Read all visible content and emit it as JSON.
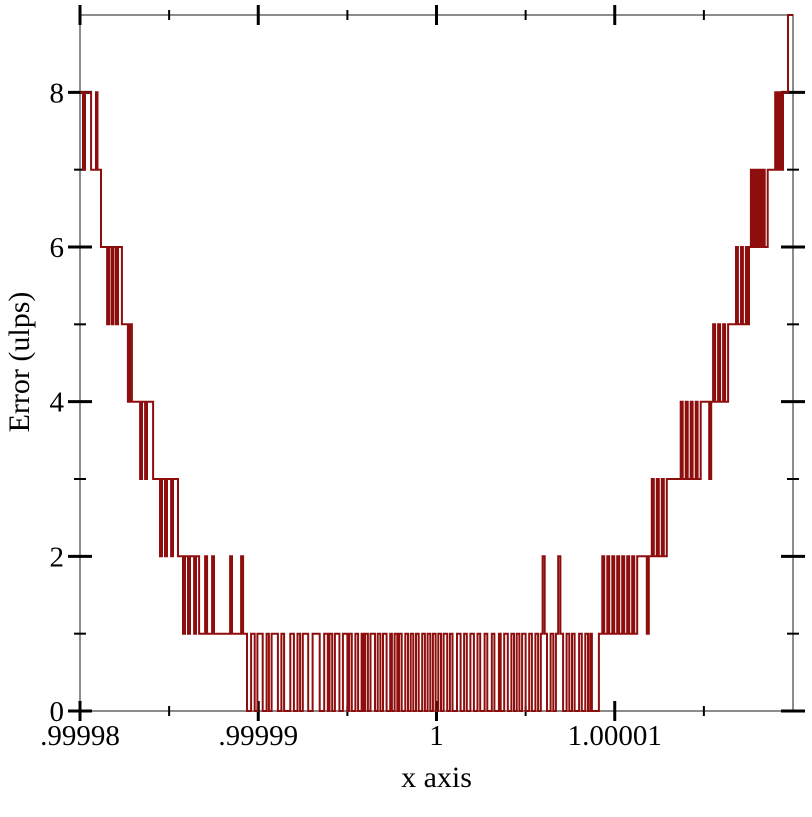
{
  "chart_data": {
    "type": "line",
    "line_style": "step",
    "title": "",
    "xlabel": "x axis",
    "ylabel": "Error (ulps)",
    "x_encoding": "x = 1 + u * 1e-5 (u stored in steps and ticks)",
    "x_range": [
      -2,
      2
    ],
    "y_range": [
      0,
      9
    ],
    "grid": false,
    "legend": "none",
    "x_ticks": [
      {
        "u": -2.0,
        "label": ".99998",
        "major": true
      },
      {
        "u": -1.5,
        "label": "",
        "major": false
      },
      {
        "u": -1.0,
        "label": ".99999",
        "major": true
      },
      {
        "u": -0.5,
        "label": "",
        "major": false
      },
      {
        "u": 0.0,
        "label": "1",
        "major": true
      },
      {
        "u": 0.5,
        "label": "",
        "major": false
      },
      {
        "u": 1.0,
        "label": "1.00001",
        "major": true
      },
      {
        "u": 1.5,
        "label": "",
        "major": false
      }
    ],
    "y_ticks": [
      {
        "v": 0,
        "label": "0",
        "major": true
      },
      {
        "v": 1,
        "label": "",
        "major": false
      },
      {
        "v": 2,
        "label": "2",
        "major": true
      },
      {
        "v": 3,
        "label": "",
        "major": false
      },
      {
        "v": 4,
        "label": "4",
        "major": true
      },
      {
        "v": 5,
        "label": "",
        "major": false
      },
      {
        "v": 6,
        "label": "6",
        "major": true
      },
      {
        "v": 7,
        "label": "",
        "major": false
      },
      {
        "v": 8,
        "label": "8",
        "major": true
      }
    ],
    "colors": {
      "line": "#8e0e0e",
      "frame": "#8c8c8c",
      "tick": "#000000",
      "text": "#000000",
      "background": "#ffffff"
    },
    "steps": [
      [
        -2.0,
        8
      ],
      [
        -1.983,
        7
      ],
      [
        -1.972,
        8
      ],
      [
        -1.938,
        7
      ],
      [
        -1.91,
        8
      ],
      [
        -1.902,
        7
      ],
      [
        -1.882,
        6
      ],
      [
        -1.848,
        5
      ],
      [
        -1.837,
        6
      ],
      [
        -1.823,
        5
      ],
      [
        -1.812,
        6
      ],
      [
        -1.798,
        5
      ],
      [
        -1.787,
        6
      ],
      [
        -1.765,
        5
      ],
      [
        -1.731,
        4
      ],
      [
        -1.72,
        5
      ],
      [
        -1.709,
        4
      ],
      [
        -1.663,
        3
      ],
      [
        -1.652,
        4
      ],
      [
        -1.635,
        3
      ],
      [
        -1.624,
        4
      ],
      [
        -1.59,
        3
      ],
      [
        -1.551,
        2
      ],
      [
        -1.54,
        3
      ],
      [
        -1.523,
        2
      ],
      [
        -1.512,
        3
      ],
      [
        -1.489,
        2
      ],
      [
        -1.478,
        3
      ],
      [
        -1.45,
        2
      ],
      [
        -1.422,
        1
      ],
      [
        -1.411,
        2
      ],
      [
        -1.394,
        1
      ],
      [
        -1.383,
        2
      ],
      [
        -1.36,
        1
      ],
      [
        -1.349,
        2
      ],
      [
        -1.332,
        1
      ],
      [
        -1.298,
        2
      ],
      [
        -1.287,
        1
      ],
      [
        -1.259,
        2
      ],
      [
        -1.248,
        1
      ],
      [
        -1.158,
        2
      ],
      [
        -1.147,
        1
      ],
      [
        -1.096,
        2
      ],
      [
        -1.085,
        1
      ],
      [
        -1.063,
        0
      ],
      [
        -1.04,
        1
      ],
      [
        -1.02,
        0
      ],
      [
        -1.005,
        1
      ],
      [
        -0.975,
        0
      ],
      [
        -0.953,
        1
      ],
      [
        -0.94,
        0
      ],
      [
        -0.925,
        1
      ],
      [
        -0.89,
        0
      ],
      [
        -0.87,
        1
      ],
      [
        -0.855,
        0
      ],
      [
        -0.82,
        1
      ],
      [
        -0.8,
        0
      ],
      [
        -0.78,
        1
      ],
      [
        -0.765,
        0
      ],
      [
        -0.75,
        1
      ],
      [
        -0.72,
        0
      ],
      [
        -0.695,
        1
      ],
      [
        -0.655,
        0
      ],
      [
        -0.63,
        1
      ],
      [
        -0.61,
        0
      ],
      [
        -0.6,
        1
      ],
      [
        -0.585,
        0
      ],
      [
        -0.57,
        1
      ],
      [
        -0.545,
        0
      ],
      [
        -0.525,
        1
      ],
      [
        -0.5,
        0
      ],
      [
        -0.49,
        1
      ],
      [
        -0.475,
        0
      ],
      [
        -0.455,
        1
      ],
      [
        -0.44,
        0
      ],
      [
        -0.42,
        1
      ],
      [
        -0.41,
        0
      ],
      [
        -0.4,
        1
      ],
      [
        -0.385,
        0
      ],
      [
        -0.37,
        1
      ],
      [
        -0.345,
        0
      ],
      [
        -0.33,
        1
      ],
      [
        -0.315,
        0
      ],
      [
        -0.3,
        1
      ],
      [
        -0.28,
        0
      ],
      [
        -0.26,
        1
      ],
      [
        -0.25,
        0
      ],
      [
        -0.235,
        1
      ],
      [
        -0.22,
        0
      ],
      [
        -0.21,
        1
      ],
      [
        -0.195,
        0
      ],
      [
        -0.175,
        1
      ],
      [
        -0.16,
        0
      ],
      [
        -0.145,
        1
      ],
      [
        -0.13,
        0
      ],
      [
        -0.115,
        1
      ],
      [
        -0.1,
        0
      ],
      [
        -0.08,
        1
      ],
      [
        -0.065,
        0
      ],
      [
        -0.05,
        1
      ],
      [
        -0.035,
        0
      ],
      [
        -0.02,
        1
      ],
      [
        -0.005,
        0
      ],
      [
        0.01,
        1
      ],
      [
        0.025,
        0
      ],
      [
        0.04,
        1
      ],
      [
        0.06,
        0
      ],
      [
        0.075,
        1
      ],
      [
        0.09,
        0
      ],
      [
        0.115,
        1
      ],
      [
        0.135,
        0
      ],
      [
        0.155,
        1
      ],
      [
        0.17,
        0
      ],
      [
        0.19,
        1
      ],
      [
        0.21,
        0
      ],
      [
        0.23,
        1
      ],
      [
        0.245,
        0
      ],
      [
        0.27,
        1
      ],
      [
        0.285,
        0
      ],
      [
        0.31,
        1
      ],
      [
        0.325,
        0
      ],
      [
        0.35,
        1
      ],
      [
        0.36,
        0
      ],
      [
        0.38,
        1
      ],
      [
        0.4,
        0
      ],
      [
        0.42,
        1
      ],
      [
        0.435,
        0
      ],
      [
        0.45,
        1
      ],
      [
        0.465,
        0
      ],
      [
        0.48,
        1
      ],
      [
        0.5,
        0
      ],
      [
        0.52,
        1
      ],
      [
        0.535,
        0
      ],
      [
        0.555,
        1
      ],
      [
        0.57,
        0
      ],
      [
        0.585,
        1
      ],
      [
        0.595,
        2
      ],
      [
        0.607,
        1
      ],
      [
        0.62,
        0
      ],
      [
        0.64,
        1
      ],
      [
        0.655,
        0
      ],
      [
        0.67,
        1
      ],
      [
        0.683,
        2
      ],
      [
        0.695,
        1
      ],
      [
        0.71,
        0
      ],
      [
        0.73,
        1
      ],
      [
        0.745,
        0
      ],
      [
        0.76,
        1
      ],
      [
        0.775,
        0
      ],
      [
        0.8,
        1
      ],
      [
        0.815,
        0
      ],
      [
        0.835,
        1
      ],
      [
        0.85,
        0
      ],
      [
        0.862,
        1
      ],
      [
        0.872,
        0
      ],
      [
        0.911,
        1
      ],
      [
        0.93,
        2
      ],
      [
        0.941,
        1
      ],
      [
        0.958,
        2
      ],
      [
        0.969,
        1
      ],
      [
        0.986,
        2
      ],
      [
        0.997,
        1
      ],
      [
        1.014,
        2
      ],
      [
        1.025,
        1
      ],
      [
        1.042,
        2
      ],
      [
        1.053,
        1
      ],
      [
        1.07,
        2
      ],
      [
        1.081,
        1
      ],
      [
        1.098,
        2
      ],
      [
        1.109,
        1
      ],
      [
        1.126,
        2
      ],
      [
        1.18,
        1
      ],
      [
        1.191,
        2
      ],
      [
        1.208,
        3
      ],
      [
        1.219,
        2
      ],
      [
        1.236,
        3
      ],
      [
        1.247,
        2
      ],
      [
        1.264,
        3
      ],
      [
        1.275,
        2
      ],
      [
        1.292,
        3
      ],
      [
        1.37,
        4
      ],
      [
        1.381,
        3
      ],
      [
        1.398,
        4
      ],
      [
        1.409,
        3
      ],
      [
        1.426,
        4
      ],
      [
        1.437,
        3
      ],
      [
        1.454,
        4
      ],
      [
        1.465,
        3
      ],
      [
        1.482,
        4
      ],
      [
        1.53,
        3
      ],
      [
        1.541,
        4
      ],
      [
        1.552,
        5
      ],
      [
        1.563,
        4
      ],
      [
        1.58,
        5
      ],
      [
        1.591,
        4
      ],
      [
        1.608,
        5
      ],
      [
        1.619,
        4
      ],
      [
        1.636,
        5
      ],
      [
        1.68,
        6
      ],
      [
        1.691,
        5
      ],
      [
        1.708,
        6
      ],
      [
        1.719,
        5
      ],
      [
        1.736,
        6
      ],
      [
        1.747,
        5
      ],
      [
        1.753,
        6
      ],
      [
        1.764,
        7
      ],
      [
        1.775,
        6
      ],
      [
        1.786,
        7
      ],
      [
        1.797,
        6
      ],
      [
        1.808,
        7
      ],
      [
        1.819,
        6
      ],
      [
        1.83,
        7
      ],
      [
        1.841,
        6
      ],
      [
        1.858,
        7
      ],
      [
        1.9,
        8
      ],
      [
        1.911,
        7
      ],
      [
        1.922,
        8
      ],
      [
        1.933,
        7
      ],
      [
        1.944,
        8
      ],
      [
        1.972,
        9
      ]
    ]
  }
}
